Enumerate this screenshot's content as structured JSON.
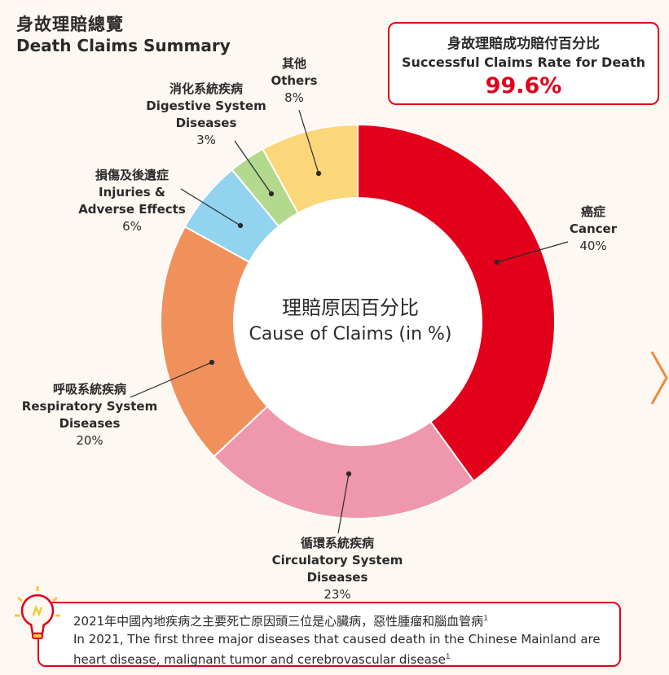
{
  "header": {
    "title_zh": "身故理賠總覽",
    "title_en": "Death Claims Summary"
  },
  "rate_box": {
    "label_zh": "身故理賠成功賠付百分比",
    "label_en": "Successful Claims Rate for Death",
    "value": "99.6%"
  },
  "chart_data": {
    "type": "pie",
    "donut": true,
    "center_label_zh": "理賠原因百分比",
    "center_label_en": "Cause of Claims (in %)",
    "slices": [
      {
        "name_zh": "癌症",
        "name_en": "Cancer",
        "value": 40,
        "pct": "40%",
        "color": "#e2001a"
      },
      {
        "name_zh": "循環系統疾病",
        "name_en": "Circulatory System Diseases",
        "value": 23,
        "pct": "23%",
        "color": "#ef97ac"
      },
      {
        "name_zh": "呼吸系統疾病",
        "name_en": "Respiratory System Diseases",
        "value": 20,
        "pct": "20%",
        "color": "#f0915c"
      },
      {
        "name_zh": "損傷及後遺症",
        "name_en": "Injuries & Adverse Effects",
        "value": 6,
        "pct": "6%",
        "color": "#92d3ef"
      },
      {
        "name_zh": "消化系統疾病",
        "name_en": "Digestive System Diseases",
        "value": 3,
        "pct": "3%",
        "color": "#b3d98f"
      },
      {
        "name_zh": "其他",
        "name_en": "Others",
        "value": 8,
        "pct": "8%",
        "color": "#fcd77a"
      }
    ]
  },
  "labels": {
    "cancer": {
      "zh": "癌症",
      "en": "Cancer",
      "pct": "40%"
    },
    "circulatory": {
      "zh": "循環系統疾病",
      "en": "Circulatory System Diseases",
      "pct": "23%"
    },
    "respiratory": {
      "zh": "呼吸系統疾病",
      "en1": "Respiratory System",
      "en2": "Diseases",
      "pct": "20%"
    },
    "injuries": {
      "zh": "損傷及後遺症",
      "en1": "Injuries &",
      "en2": "Adverse Effects",
      "pct": "6%"
    },
    "digestive": {
      "zh": "消化系統疾病",
      "en1": "Digestive System",
      "en2": "Diseases",
      "pct": "3%"
    },
    "others": {
      "zh": "其他",
      "en": "Others",
      "pct": "8%"
    }
  },
  "note": {
    "line_zh": "2021年中國內地疾病之主要死亡原因頭三位是心臟病，惡性腫瘤和腦血管病",
    "line_en1": "In 2021, The first three major diseases that caused death in the Chinese Mainland are",
    "line_en2": "heart disease, malignant tumor and cerebrovascular disease",
    "footnote_mark": "1"
  },
  "icons": {
    "bulb": "lightbulb-icon",
    "next": "chevron-right-icon"
  }
}
